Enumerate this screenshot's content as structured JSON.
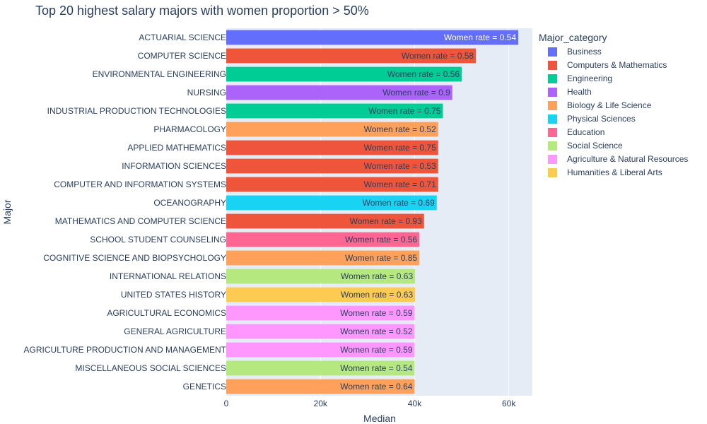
{
  "chart_data": {
    "type": "bar",
    "orientation": "horizontal",
    "title": "Top 20 highest salary majors with women proportion > 50%",
    "xlabel": "Median",
    "ylabel": "Major",
    "xlim": [
      0,
      65000
    ],
    "xticks": [
      0,
      20000,
      40000,
      60000
    ],
    "xtick_labels": [
      "0",
      "20k",
      "40k",
      "60k"
    ],
    "grid": true,
    "legend_title": "Major_category",
    "legend_position": "right",
    "label_prefix": "Women rate = ",
    "categories_legend": [
      {
        "name": "Business",
        "color": "#636efa"
      },
      {
        "name": "Computers & Mathematics",
        "color": "#ef553b"
      },
      {
        "name": "Engineering",
        "color": "#00cc96"
      },
      {
        "name": "Health",
        "color": "#ab63fa"
      },
      {
        "name": "Biology & Life Science",
        "color": "#ffa15a"
      },
      {
        "name": "Physical Sciences",
        "color": "#19d3f3"
      },
      {
        "name": "Education",
        "color": "#ff6692"
      },
      {
        "name": "Social Science",
        "color": "#b6e880"
      },
      {
        "name": "Agriculture & Natural Resources",
        "color": "#ff97ff"
      },
      {
        "name": "Humanities & Liberal Arts",
        "color": "#fecb52"
      }
    ],
    "bars": [
      {
        "major": "ACTUARIAL SCIENCE",
        "value": 62000,
        "category": "Business",
        "label": "0.54"
      },
      {
        "major": "COMPUTER SCIENCE",
        "value": 53000,
        "category": "Computers & Mathematics",
        "label": "0.58"
      },
      {
        "major": "ENVIRONMENTAL ENGINEERING",
        "value": 50000,
        "category": "Engineering",
        "label": "0.56"
      },
      {
        "major": "NURSING",
        "value": 48000,
        "category": "Health",
        "label": "0.9"
      },
      {
        "major": "INDUSTRIAL PRODUCTION TECHNOLOGIES",
        "value": 46000,
        "category": "Engineering",
        "label": "0.75"
      },
      {
        "major": "PHARMACOLOGY",
        "value": 45000,
        "category": "Biology & Life Science",
        "label": "0.52"
      },
      {
        "major": "APPLIED MATHEMATICS",
        "value": 45000,
        "category": "Computers & Mathematics",
        "label": "0.75"
      },
      {
        "major": "INFORMATION SCIENCES",
        "value": 45000,
        "category": "Computers & Mathematics",
        "label": "0.53"
      },
      {
        "major": "COMPUTER AND INFORMATION SYSTEMS",
        "value": 45000,
        "category": "Computers & Mathematics",
        "label": "0.71"
      },
      {
        "major": "OCEANOGRAPHY",
        "value": 44700,
        "category": "Physical Sciences",
        "label": "0.69"
      },
      {
        "major": "MATHEMATICS AND COMPUTER SCIENCE",
        "value": 42000,
        "category": "Computers & Mathematics",
        "label": "0.93"
      },
      {
        "major": "SCHOOL STUDENT COUNSELING",
        "value": 41000,
        "category": "Education",
        "label": "0.56"
      },
      {
        "major": "COGNITIVE SCIENCE AND BIOPSYCHOLOGY",
        "value": 41000,
        "category": "Biology & Life Science",
        "label": "0.85"
      },
      {
        "major": "INTERNATIONAL RELATIONS",
        "value": 40100,
        "category": "Social Science",
        "label": "0.63"
      },
      {
        "major": "UNITED STATES HISTORY",
        "value": 40100,
        "category": "Humanities & Liberal Arts",
        "label": "0.63"
      },
      {
        "major": "AGRICULTURAL ECONOMICS",
        "value": 40000,
        "category": "Agriculture & Natural Resources",
        "label": "0.59"
      },
      {
        "major": "GENERAL AGRICULTURE",
        "value": 40000,
        "category": "Agriculture & Natural Resources",
        "label": "0.52"
      },
      {
        "major": "AGRICULTURE PRODUCTION AND MANAGEMENT",
        "value": 40000,
        "category": "Agriculture & Natural Resources",
        "label": "0.59"
      },
      {
        "major": "MISCELLANEOUS SOCIAL SCIENCES",
        "value": 40000,
        "category": "Social Science",
        "label": "0.54"
      },
      {
        "major": "GENETICS",
        "value": 40000,
        "category": "Biology & Life Science",
        "label": "0.64"
      }
    ]
  }
}
